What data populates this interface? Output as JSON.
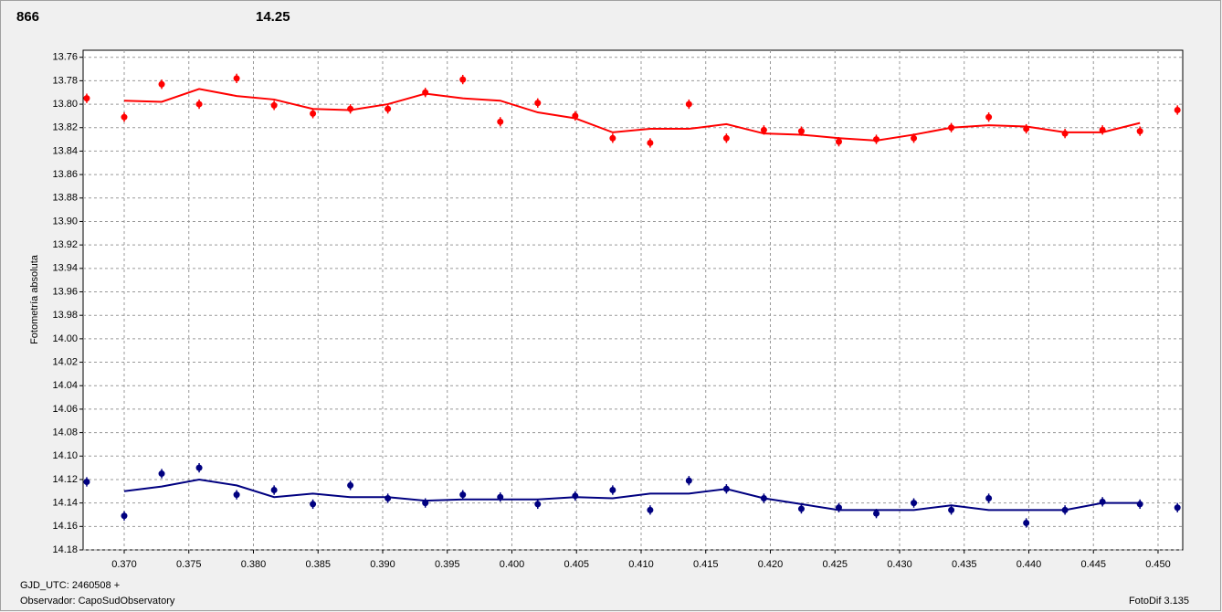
{
  "chart_data": {
    "type": "scatter",
    "labels": [
      "866",
      "14.25"
    ],
    "ylabel": "Fotometría absoluta",
    "footer": {
      "date": "GJD_UTC: 2460508 +",
      "observer": "Observador: CapoSudObservatory",
      "software": "FotoDif 3.135"
    },
    "x": [
      0.3671,
      0.37,
      0.3729,
      0.3758,
      0.3787,
      0.3816,
      0.3846,
      0.3875,
      0.3904,
      0.3933,
      0.3962,
      0.3991,
      0.402,
      0.4049,
      0.4078,
      0.4107,
      0.4137,
      0.4166,
      0.4195,
      0.4224,
      0.4253,
      0.4282,
      0.4311,
      0.434,
      0.4369,
      0.4398,
      0.4428,
      0.4457,
      0.4486,
      0.4515
    ],
    "series": [
      {
        "type": "scatter",
        "color": "#ff0000",
        "error": 0.004,
        "values": [
          13.795,
          13.811,
          13.783,
          13.8,
          13.778,
          13.801,
          13.808,
          13.804,
          13.804,
          13.79,
          13.779,
          13.815,
          13.799,
          13.81,
          13.829,
          13.833,
          13.8,
          13.829,
          13.822,
          13.823,
          13.832,
          13.83,
          13.829,
          13.82,
          13.811,
          13.821,
          13.825,
          13.822,
          13.823,
          13.805
        ]
      },
      {
        "type": "line",
        "color": "#ff0000",
        "values": [
          null,
          13.797,
          13.798,
          13.787,
          13.793,
          13.796,
          13.804,
          13.805,
          13.8,
          13.791,
          13.795,
          13.797,
          13.807,
          13.812,
          13.824,
          13.821,
          13.821,
          13.817,
          13.825,
          13.826,
          13.829,
          13.831,
          13.826,
          13.82,
          13.818,
          13.819,
          13.824,
          13.824,
          13.816,
          null
        ]
      },
      {
        "type": "scatter",
        "color": "#000080",
        "error": 0.004,
        "values": [
          14.122,
          14.151,
          14.115,
          14.11,
          14.133,
          14.129,
          14.141,
          14.125,
          14.136,
          14.14,
          14.133,
          14.135,
          14.141,
          14.134,
          14.129,
          14.146,
          14.121,
          14.128,
          14.136,
          14.145,
          14.144,
          14.149,
          14.14,
          14.146,
          14.136,
          14.157,
          14.146,
          14.139,
          14.141,
          14.144
        ]
      },
      {
        "type": "line",
        "color": "#000080",
        "values": [
          null,
          14.13,
          14.126,
          14.12,
          14.125,
          14.135,
          14.132,
          14.135,
          14.135,
          14.138,
          14.137,
          14.137,
          14.137,
          14.135,
          14.136,
          14.132,
          14.132,
          14.128,
          14.136,
          14.141,
          14.146,
          14.146,
          14.146,
          14.142,
          14.146,
          14.146,
          14.146,
          14.14,
          14.14,
          null
        ]
      }
    ],
    "label_colors": [
      "#ff0000",
      "#000080"
    ],
    "xlim": [
      0.36682,
      0.45191
    ],
    "ylim": [
      14.18,
      13.754
    ],
    "xticks": [
      {
        "value": 0.37,
        "label": "0.370"
      },
      0.375,
      {
        "value": 0.38,
        "label": "0.380"
      },
      0.385,
      {
        "value": 0.39,
        "label": "0.390"
      },
      0.395,
      {
        "value": 0.4,
        "label": "0.400"
      },
      0.405,
      {
        "value": 0.41,
        "label": "0.410"
      },
      0.415,
      {
        "value": 0.42,
        "label": "0.420"
      },
      0.425,
      {
        "value": 0.43,
        "label": "0.430"
      },
      0.435,
      {
        "value": 0.44,
        "label": "0.440"
      },
      0.445,
      {
        "value": 0.45,
        "label": "0.450"
      }
    ],
    "yticks": [
      13.76,
      13.78,
      {
        "value": 13.8,
        "label": "13.80"
      },
      13.82,
      13.84,
      13.86,
      13.88,
      {
        "value": 13.9,
        "label": "13.90"
      },
      13.92,
      13.94,
      13.96,
      13.98,
      {
        "value": 14.0,
        "label": "14.00"
      },
      14.02,
      14.04,
      14.06,
      14.08,
      {
        "value": 14.1,
        "label": "14.10"
      },
      14.12,
      14.14,
      14.16,
      14.18
    ],
    "grid": true
  }
}
